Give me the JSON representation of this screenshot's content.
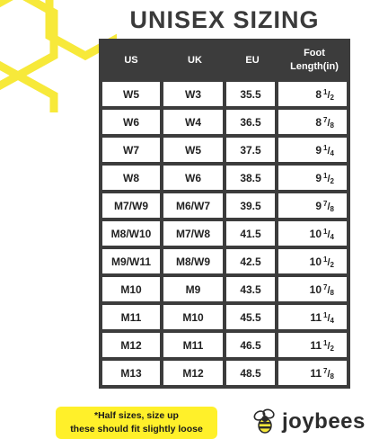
{
  "title": "UNISEX SIZING",
  "headers": {
    "us": "US",
    "uk": "UK",
    "eu": "EU",
    "foot_line1": "Foot",
    "foot_line2": "Length(in)"
  },
  "rows": [
    {
      "us": "W5",
      "uk": "W3",
      "eu": "35.5",
      "whole": "8",
      "num": "1",
      "den": "2"
    },
    {
      "us": "W6",
      "uk": "W4",
      "eu": "36.5",
      "whole": "8",
      "num": "7",
      "den": "8"
    },
    {
      "us": "W7",
      "uk": "W5",
      "eu": "37.5",
      "whole": "9",
      "num": "1",
      "den": "4"
    },
    {
      "us": "W8",
      "uk": "W6",
      "eu": "38.5",
      "whole": "9",
      "num": "1",
      "den": "2"
    },
    {
      "us": "M7/W9",
      "uk": "M6/W7",
      "eu": "39.5",
      "whole": "9",
      "num": "7",
      "den": "8"
    },
    {
      "us": "M8/W10",
      "uk": "M7/W8",
      "eu": "41.5",
      "whole": "10",
      "num": "1",
      "den": "4"
    },
    {
      "us": "M9/W11",
      "uk": "M8/W9",
      "eu": "42.5",
      "whole": "10",
      "num": "1",
      "den": "2"
    },
    {
      "us": "M10",
      "uk": "M9",
      "eu": "43.5",
      "whole": "10",
      "num": "7",
      "den": "8"
    },
    {
      "us": "M11",
      "uk": "M10",
      "eu": "45.5",
      "whole": "11",
      "num": "1",
      "den": "4"
    },
    {
      "us": "M12",
      "uk": "M11",
      "eu": "46.5",
      "whole": "11",
      "num": "1",
      "den": "2"
    },
    {
      "us": "M13",
      "uk": "M12",
      "eu": "48.5",
      "whole": "11",
      "num": "7",
      "den": "8"
    }
  ],
  "note": {
    "line1": "*Half sizes, size up",
    "line2": "these should fit slightly loose"
  },
  "logo": {
    "text": "joybees",
    "icon": "bee-icon"
  },
  "colors": {
    "accent_yellow": "#fff02a",
    "hex_yellow": "#f7e93a",
    "table_dark": "#3c3c3c"
  }
}
